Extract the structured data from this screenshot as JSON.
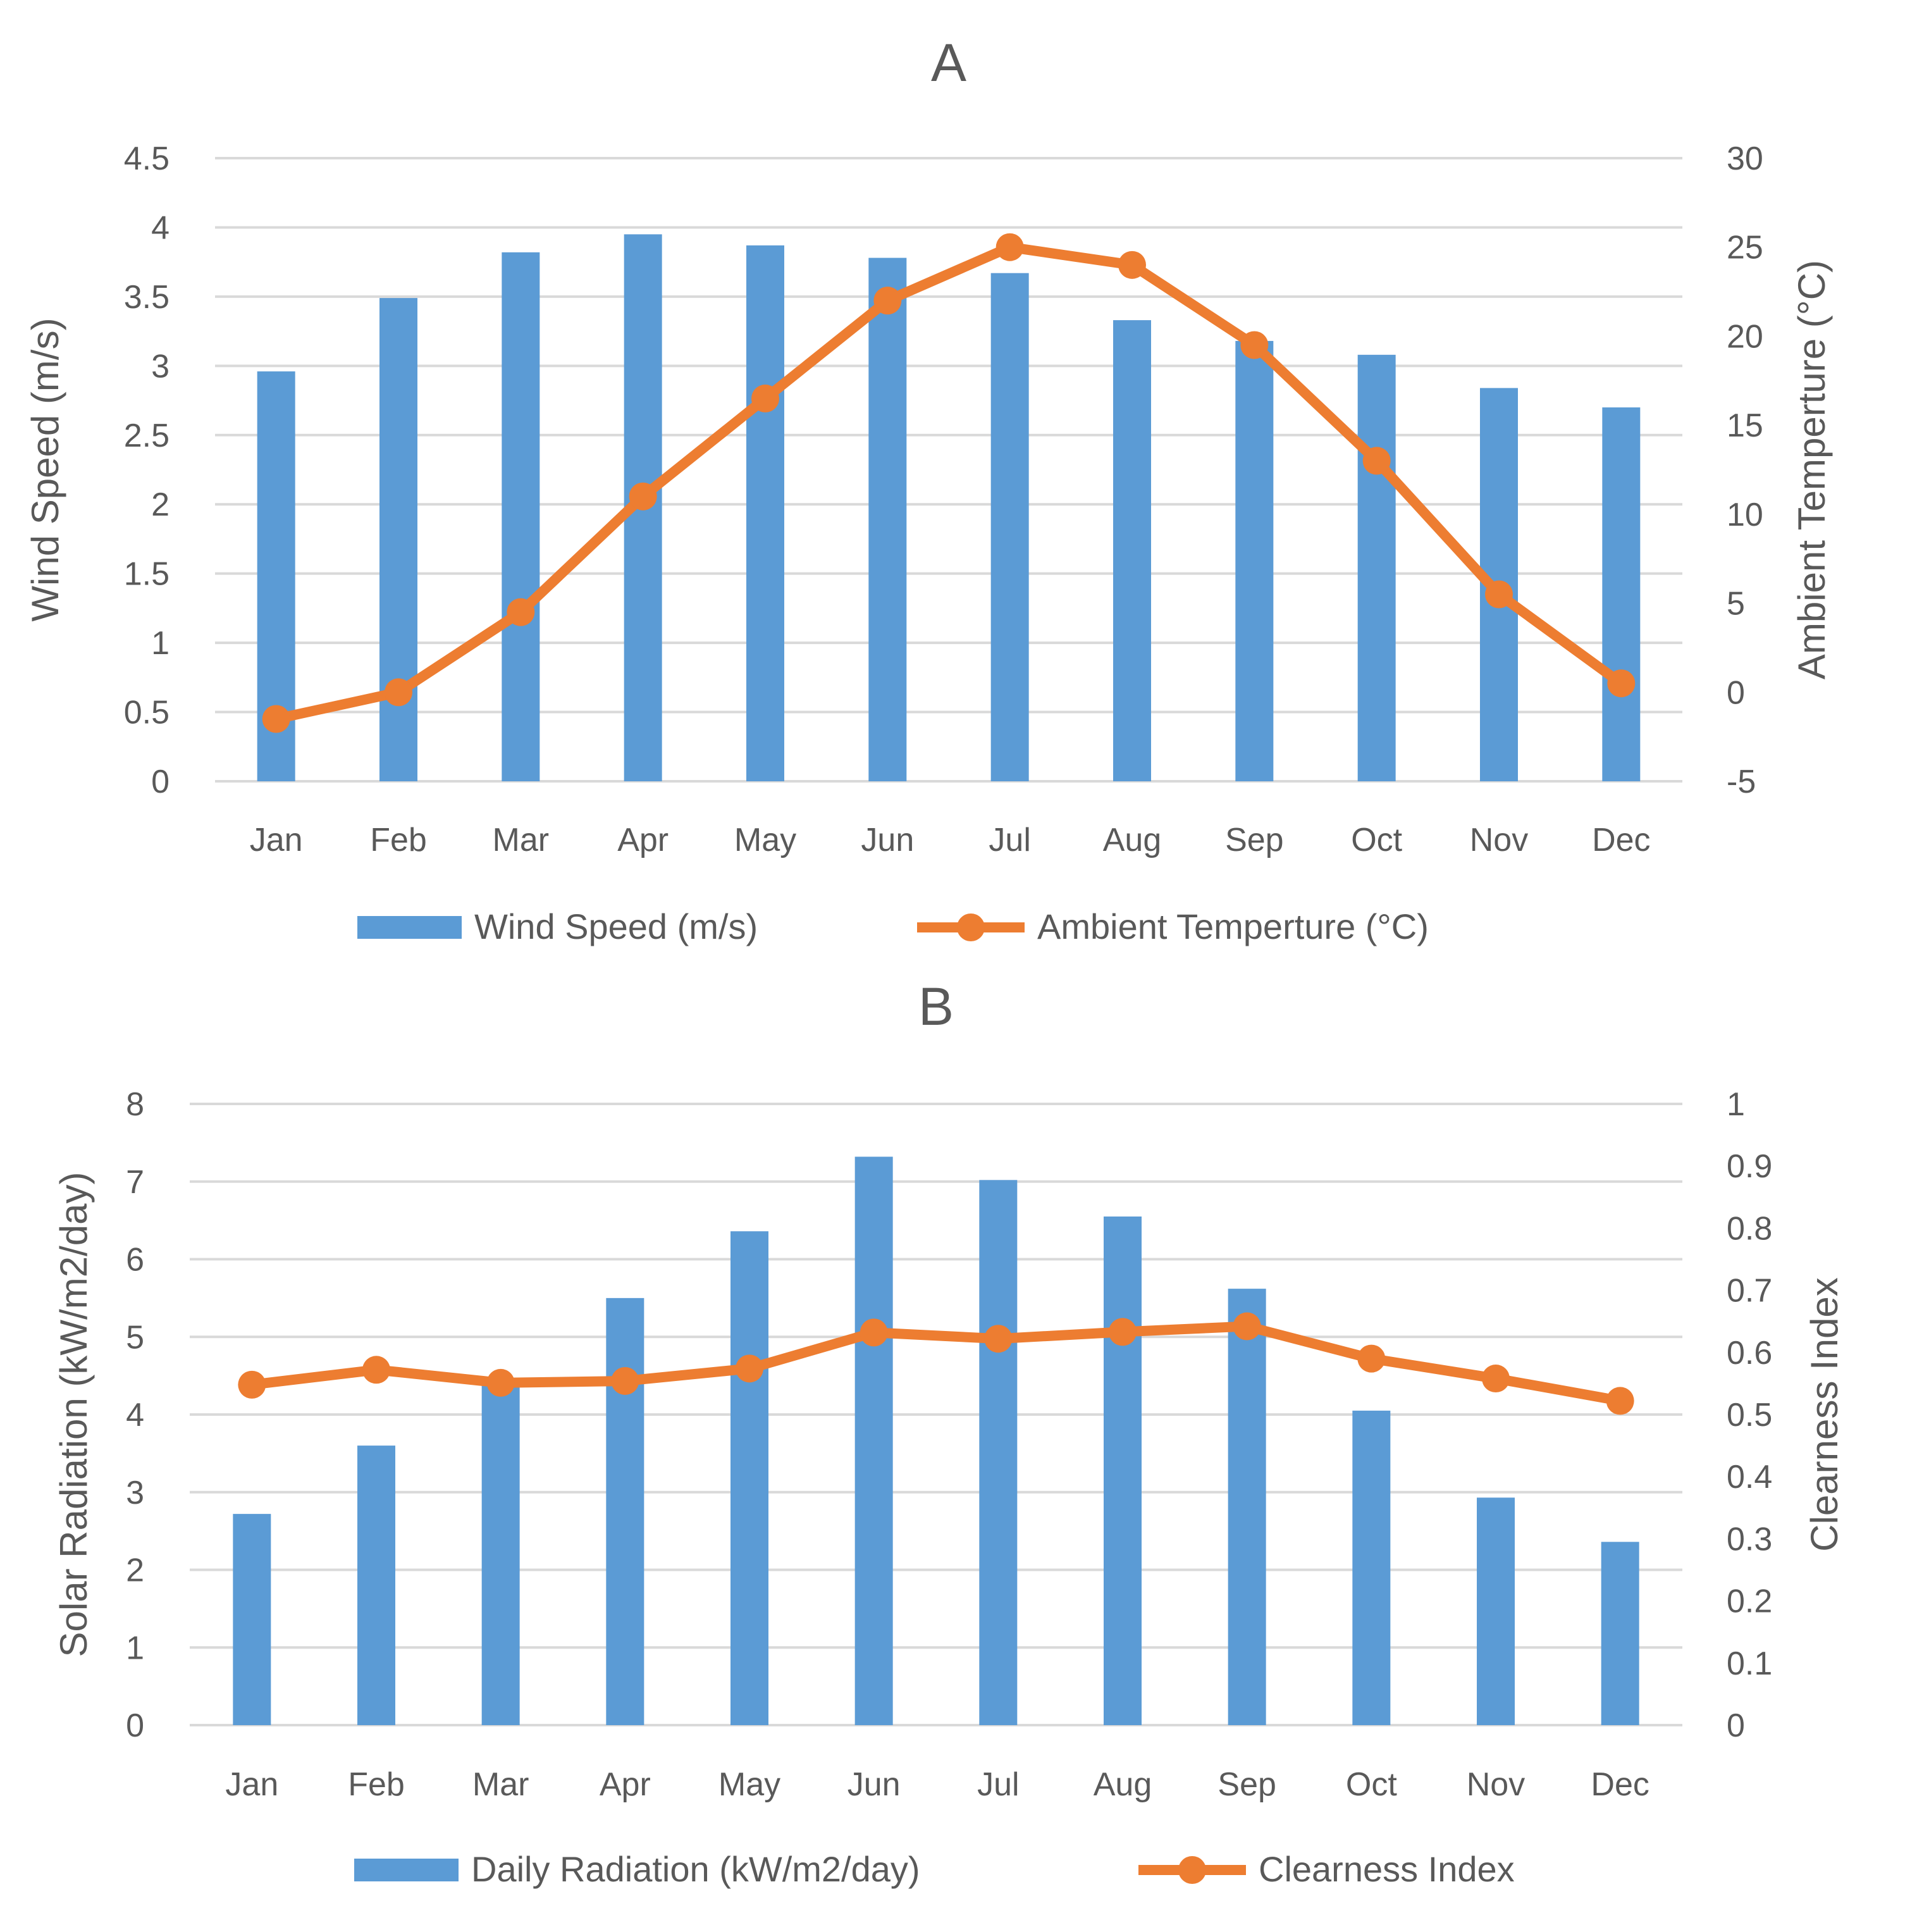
{
  "chart_data": [
    {
      "type": "bar+line",
      "title": "A",
      "categories": [
        "Jan",
        "Feb",
        "Mar",
        "Apr",
        "May",
        "Jun",
        "Jul",
        "Aug",
        "Sep",
        "Oct",
        "Nov",
        "Dec"
      ],
      "series": [
        {
          "name": "Wind Speed (m/s)",
          "type": "bar",
          "axis": "left",
          "color": "#5b9bd5",
          "values": [
            2.96,
            3.49,
            3.82,
            3.95,
            3.87,
            3.78,
            3.67,
            3.33,
            3.18,
            3.08,
            2.84,
            2.7
          ]
        },
        {
          "name": "Ambient Temperture (°C)",
          "type": "line",
          "axis": "right",
          "color": "#ed7d31",
          "values": [
            -1.5,
            0,
            4.5,
            11,
            16.5,
            22,
            25,
            24,
            19.5,
            13,
            5.5,
            0.5
          ]
        }
      ],
      "ylabel": "Wind Speed (m/s)",
      "ylim": [
        0,
        4.5
      ],
      "yticks": [
        "0",
        "0.5",
        "1",
        "1.5",
        "2",
        "2.5",
        "3",
        "3.5",
        "4",
        "4.5"
      ],
      "y2label": "Ambient Temperture (°C)",
      "y2lim": [
        -5,
        30
      ],
      "y2ticks": [
        "-5",
        "0",
        "5",
        "10",
        "15",
        "20",
        "25",
        "30"
      ],
      "legend": "bottom"
    },
    {
      "type": "bar+line",
      "title": "B",
      "categories": [
        "Jan",
        "Feb",
        "Mar",
        "Apr",
        "May",
        "Jun",
        "Jul",
        "Aug",
        "Sep",
        "Oct",
        "Nov",
        "Dec"
      ],
      "series": [
        {
          "name": "Daily Radiation (kW/m2/day)",
          "type": "bar",
          "axis": "left",
          "color": "#5b9bd5",
          "values": [
            2.72,
            3.6,
            4.4,
            5.5,
            6.36,
            7.32,
            7.02,
            6.55,
            5.62,
            4.05,
            2.93,
            2.36
          ]
        },
        {
          "name": "Clearness Index",
          "type": "line",
          "axis": "right",
          "color": "#ed7d31",
          "values": [
            0.548,
            0.572,
            0.551,
            0.554,
            0.574,
            0.632,
            0.622,
            0.633,
            0.642,
            0.59,
            0.558,
            0.522
          ]
        }
      ],
      "ylabel": "Solar Radiation (kW/m2/day)",
      "ylim": [
        0,
        8
      ],
      "yticks": [
        "0",
        "1",
        "2",
        "3",
        "4",
        "5",
        "6",
        "7",
        "8"
      ],
      "y2label": "Clearness Index",
      "y2lim": [
        0,
        1
      ],
      "y2ticks": [
        "0",
        "0.1",
        "0.2",
        "0.3",
        "0.4",
        "0.5",
        "0.6",
        "0.7",
        "0.8",
        "0.9",
        "1"
      ],
      "legend": "bottom"
    }
  ]
}
